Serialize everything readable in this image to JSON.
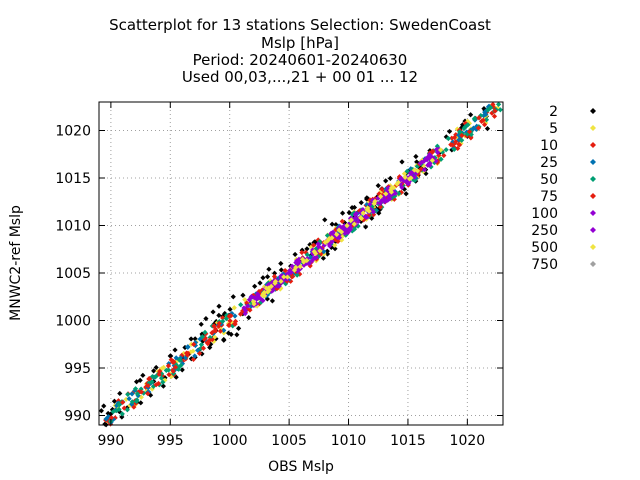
{
  "chart_data": {
    "type": "scatter",
    "title_lines": [
      "Scatterplot for   13 stations Selection: SwedenCoast",
      "Mslp [hPa]",
      "Period: 20240601-20240630",
      "Used 00,03,...,21 + 00 01 ... 12"
    ],
    "xlabel": "OBS Mslp",
    "ylabel": "MNWC2-ref Mslp",
    "xlim": [
      989,
      1023
    ],
    "ylim": [
      989,
      1023
    ],
    "x_ticks": [
      990,
      995,
      1000,
      1005,
      1010,
      1015,
      1020
    ],
    "y_ticks": [
      990,
      995,
      1000,
      1005,
      1010,
      1015,
      1020
    ],
    "grid": true,
    "legend_position": "right",
    "legend": [
      {
        "label": "2",
        "color": "#000000"
      },
      {
        "label": "5",
        "color": "#f0e442"
      },
      {
        "label": "10",
        "color": "#e51e10"
      },
      {
        "label": "25",
        "color": "#0072b2"
      },
      {
        "label": "50",
        "color": "#009e73"
      },
      {
        "label": "75",
        "color": "#e51e10"
      },
      {
        "label": "100",
        "color": "#9400d3"
      },
      {
        "label": "250",
        "color": "#9400d3"
      },
      {
        "label": "500",
        "color": "#f0e442"
      },
      {
        "label": "750",
        "color": "#a0a0a0"
      }
    ],
    "series": [
      {
        "color": "#000000",
        "spread": 1.6,
        "points": [
          [
            989.2,
            990.5
          ],
          [
            989.5,
            989.1
          ],
          [
            989.4,
            991.0
          ],
          [
            990.3,
            991.5
          ],
          [
            993.6,
            994.7
          ],
          [
            996.0,
            996.3
          ],
          [
            997.6,
            999.6
          ],
          [
            998.0,
            1000.2
          ],
          [
            998.6,
            1000.9
          ],
          [
            999.1,
            1001.5
          ],
          [
            998.4,
            997.5
          ],
          [
            999.5,
            998.0
          ],
          [
            1000.3,
            1002.5
          ],
          [
            1001.6,
            1000.3
          ],
          [
            1002.1,
            1003.6
          ],
          [
            1003.3,
            1005.4
          ],
          [
            1004.3,
            1006.0
          ],
          [
            1005.1,
            1005.3
          ],
          [
            1006.1,
            1007.4
          ],
          [
            1007.2,
            1008.2
          ],
          [
            1008.0,
            1010.6
          ],
          [
            1009.5,
            1011.3
          ],
          [
            1010.5,
            1011.9
          ],
          [
            1011.6,
            1012.1
          ],
          [
            1012.5,
            1014.2
          ],
          [
            1013.3,
            1014.0
          ],
          [
            1014.5,
            1016.7
          ],
          [
            1016.0,
            1016.5
          ],
          [
            1017.5,
            1018.0
          ],
          [
            1018.5,
            1019.9
          ],
          [
            1019.6,
            1020.6
          ],
          [
            1021.4,
            1022.3
          ],
          [
            1000.6,
            998.5
          ],
          [
            1004.2,
            1003.8
          ],
          [
            1002.8,
            1004.5
          ],
          [
            995.4,
            996.9
          ]
        ]
      },
      {
        "color": "#f0e442",
        "spread": 1.0,
        "count": 120
      },
      {
        "color": "#e51e10",
        "spread": 1.1,
        "count": 140
      },
      {
        "color": "#0072b2",
        "spread": 0.8,
        "count": 140
      },
      {
        "color": "#009e73",
        "spread": 0.9,
        "count": 150
      },
      {
        "color": "#e51e10",
        "spread": 0.8,
        "count": 100
      },
      {
        "color": "#9400d3",
        "spread": 0.7,
        "count": 120,
        "range": [
          1001,
          1018
        ]
      },
      {
        "color": "#9400d3",
        "spread": 0.6,
        "count": 100,
        "range": [
          1002,
          1017
        ]
      },
      {
        "color": "#f0e442",
        "spread": 0.35,
        "count": 60,
        "range": [
          1002,
          1018
        ]
      }
    ]
  }
}
